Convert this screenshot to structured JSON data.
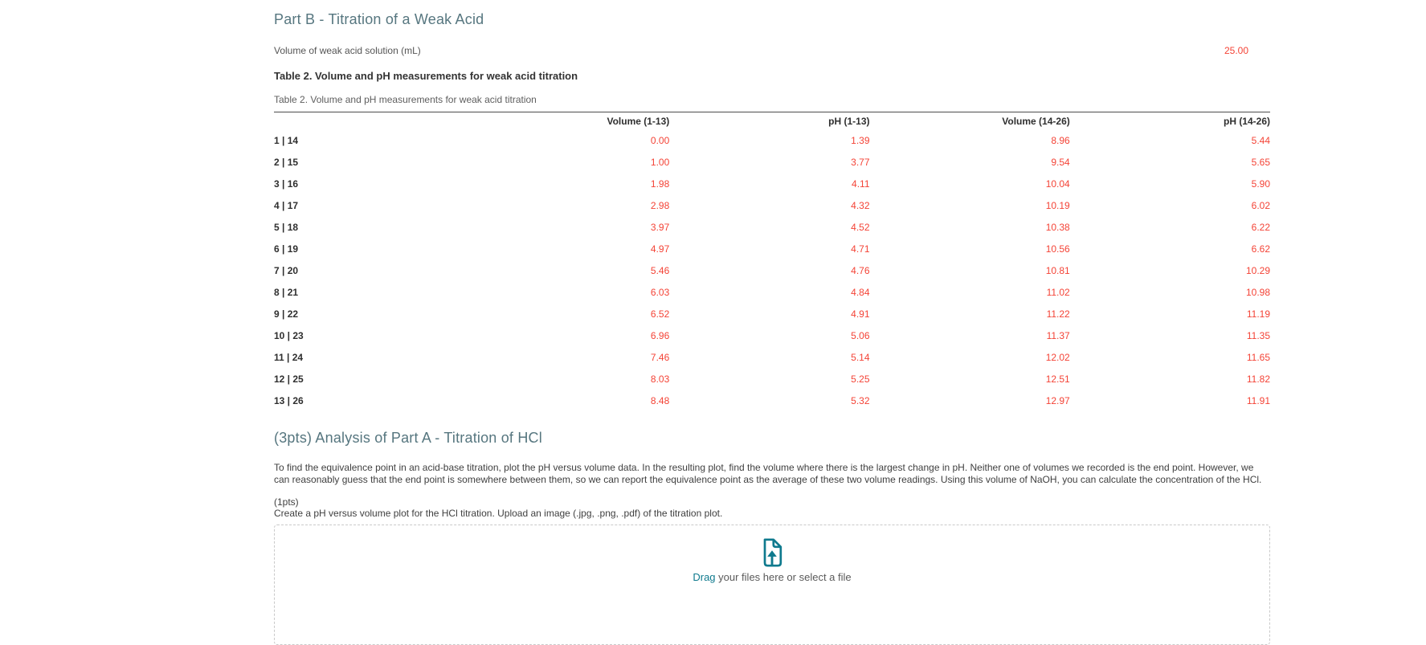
{
  "part_b": {
    "title": "Part B - Titration of a Weak Acid",
    "volume_label": "Volume of weak acid solution (mL)",
    "volume_value": "25.00",
    "table_title": "Table 2. Volume and pH measurements for weak acid titration",
    "table_caption": "Table 2. Volume and pH measurements for weak acid titration"
  },
  "table": {
    "headers": [
      "",
      "Volume (1-13)",
      "pH (1-13)",
      "Volume (14-26)",
      "pH (14-26)"
    ],
    "rows": [
      {
        "label": "1 | 14",
        "values": [
          "0.00",
          "1.39",
          "8.96",
          "5.44"
        ]
      },
      {
        "label": "2 | 15",
        "values": [
          "1.00",
          "3.77",
          "9.54",
          "5.65"
        ]
      },
      {
        "label": "3 | 16",
        "values": [
          "1.98",
          "4.11",
          "10.04",
          "5.90"
        ]
      },
      {
        "label": "4 | 17",
        "values": [
          "2.98",
          "4.32",
          "10.19",
          "6.02"
        ]
      },
      {
        "label": "5 | 18",
        "values": [
          "3.97",
          "4.52",
          "10.38",
          "6.22"
        ]
      },
      {
        "label": "6 | 19",
        "values": [
          "4.97",
          "4.71",
          "10.56",
          "6.62"
        ]
      },
      {
        "label": "7 | 20",
        "values": [
          "5.46",
          "4.76",
          "10.81",
          "10.29"
        ]
      },
      {
        "label": "8 | 21",
        "values": [
          "6.03",
          "4.84",
          "11.02",
          "10.98"
        ]
      },
      {
        "label": "9 | 22",
        "values": [
          "6.52",
          "4.91",
          "11.22",
          "11.19"
        ]
      },
      {
        "label": "10 | 23",
        "values": [
          "6.96",
          "5.06",
          "11.37",
          "11.35"
        ]
      },
      {
        "label": "11 | 24",
        "values": [
          "7.46",
          "5.14",
          "12.02",
          "11.65"
        ]
      },
      {
        "label": "12 | 25",
        "values": [
          "8.03",
          "5.25",
          "12.51",
          "11.82"
        ]
      },
      {
        "label": "13 | 26",
        "values": [
          "8.48",
          "5.32",
          "12.97",
          "11.91"
        ]
      }
    ]
  },
  "analysis": {
    "title": "(3pts) Analysis of Part A - Titration of HCl",
    "description": "To find the equivalence point in an acid-base titration, plot the pH versus volume data. In the resulting plot, find the volume where there is the largest change in pH. Neither one of volumes we recorded is the end point. However, we can reasonably guess that the end point is somewhere between them, so we can report the equivalence point as the average of these two volume readings. Using this volume of NaOH, you can calculate the concentration of the HCl.",
    "points_label": "(1pts)",
    "instruction": "Create a pH versus volume plot for the HCl titration. Upload an image (.jpg, .png, .pdf) of the titration plot.",
    "upload": {
      "hint_lead": "Drag",
      "hint_rest": " your files here or select a file",
      "icon": "file-upload-icon"
    }
  },
  "colors": {
    "heading_teal": "#56767f",
    "value_red": "#f44336",
    "icon_teal": "#0f7a8e",
    "table_rule": "#4d4d4d",
    "dropzone_border": "#c9c9c9"
  }
}
